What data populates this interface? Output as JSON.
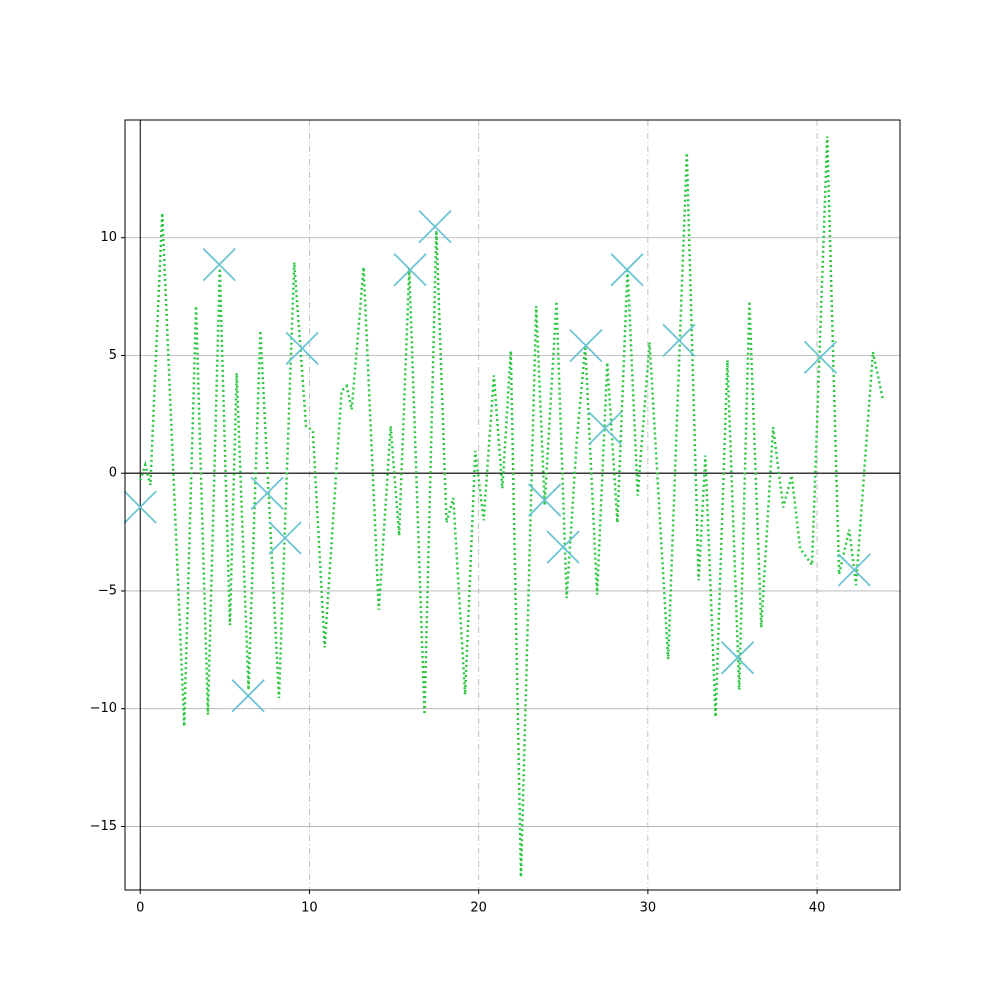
{
  "chart_data": {
    "type": "line",
    "xlim": [
      -0.9,
      44.9
    ],
    "ylim": [
      -17.7,
      15.0
    ],
    "xticks": [
      0,
      10,
      20,
      30,
      40
    ],
    "yticks": [
      {
        "value": -15,
        "label": "−15"
      },
      {
        "value": -10,
        "label": "−10"
      },
      {
        "value": -5,
        "label": "−5"
      },
      0,
      5,
      10
    ],
    "xgrid": "dashdot",
    "ygrid": "solid",
    "zero_lines": true,
    "series": [
      {
        "type": "line",
        "style": "dotted",
        "color": "#2bc63f",
        "x": [
          0,
          0.3,
          0.6,
          1.3,
          2.6,
          3.3,
          4.0,
          4.7,
          5.3,
          5.7,
          6.4,
          7.1,
          8.2,
          9.1,
          9.8,
          10.2,
          10.9,
          11.9,
          12.2,
          12.5,
          13.2,
          14.1,
          14.8,
          15.3,
          15.9,
          16.8,
          17.5,
          18.1,
          18.5,
          19.2,
          19.8,
          20.3,
          20.9,
          21.4,
          21.9,
          22.5,
          23.4,
          23.9,
          24.6,
          25.2,
          25.8,
          26.3,
          27.0,
          27.6,
          28.2,
          28.8,
          29.4,
          30.1,
          31.2,
          32.3,
          33.0,
          33.4,
          34.0,
          34.7,
          35.4,
          36.0,
          36.7,
          37.4,
          38.0,
          38.5,
          39.0,
          39.7,
          40.6,
          41.3,
          41.9,
          42.3,
          43.3,
          43.9
        ],
        "values": [
          -0.3,
          0.35,
          -0.5,
          11.05,
          -10.75,
          7.1,
          -10.25,
          8.7,
          -6.45,
          4.25,
          -9.2,
          6.05,
          -9.55,
          8.95,
          2.0,
          1.8,
          -7.4,
          3.5,
          3.7,
          2.7,
          8.75,
          -5.8,
          2.0,
          -2.65,
          8.7,
          -10.25,
          10.3,
          -2.1,
          -1.05,
          -9.4,
          0.95,
          -2.0,
          4.15,
          -0.65,
          5.2,
          -17.15,
          7.1,
          -1.35,
          7.3,
          -5.3,
          1.4,
          5.4,
          -5.15,
          4.7,
          -2.1,
          8.7,
          -0.95,
          5.55,
          -7.9,
          13.6,
          -4.55,
          0.75,
          -10.35,
          4.8,
          -9.2,
          7.3,
          -6.55,
          1.95,
          -1.45,
          -0.1,
          -3.2,
          -3.9,
          14.3,
          -4.3,
          -2.4,
          -4.75,
          5.15,
          3.1
        ]
      },
      {
        "type": "scatter",
        "marker": "x",
        "color": "#6cc5d3",
        "x": [
          0,
          4.67,
          6.38,
          7.5,
          8.56,
          9.57,
          15.95,
          17.42,
          23.9,
          24.99,
          26.34,
          27.47,
          28.77,
          31.84,
          35.3,
          40.2,
          42.2
        ],
        "values": [
          -1.44,
          8.86,
          -9.45,
          -0.85,
          -2.75,
          5.3,
          8.64,
          10.47,
          -1.14,
          -3.14,
          5.42,
          1.91,
          8.64,
          5.64,
          -7.84,
          4.92,
          -4.11
        ]
      }
    ]
  }
}
